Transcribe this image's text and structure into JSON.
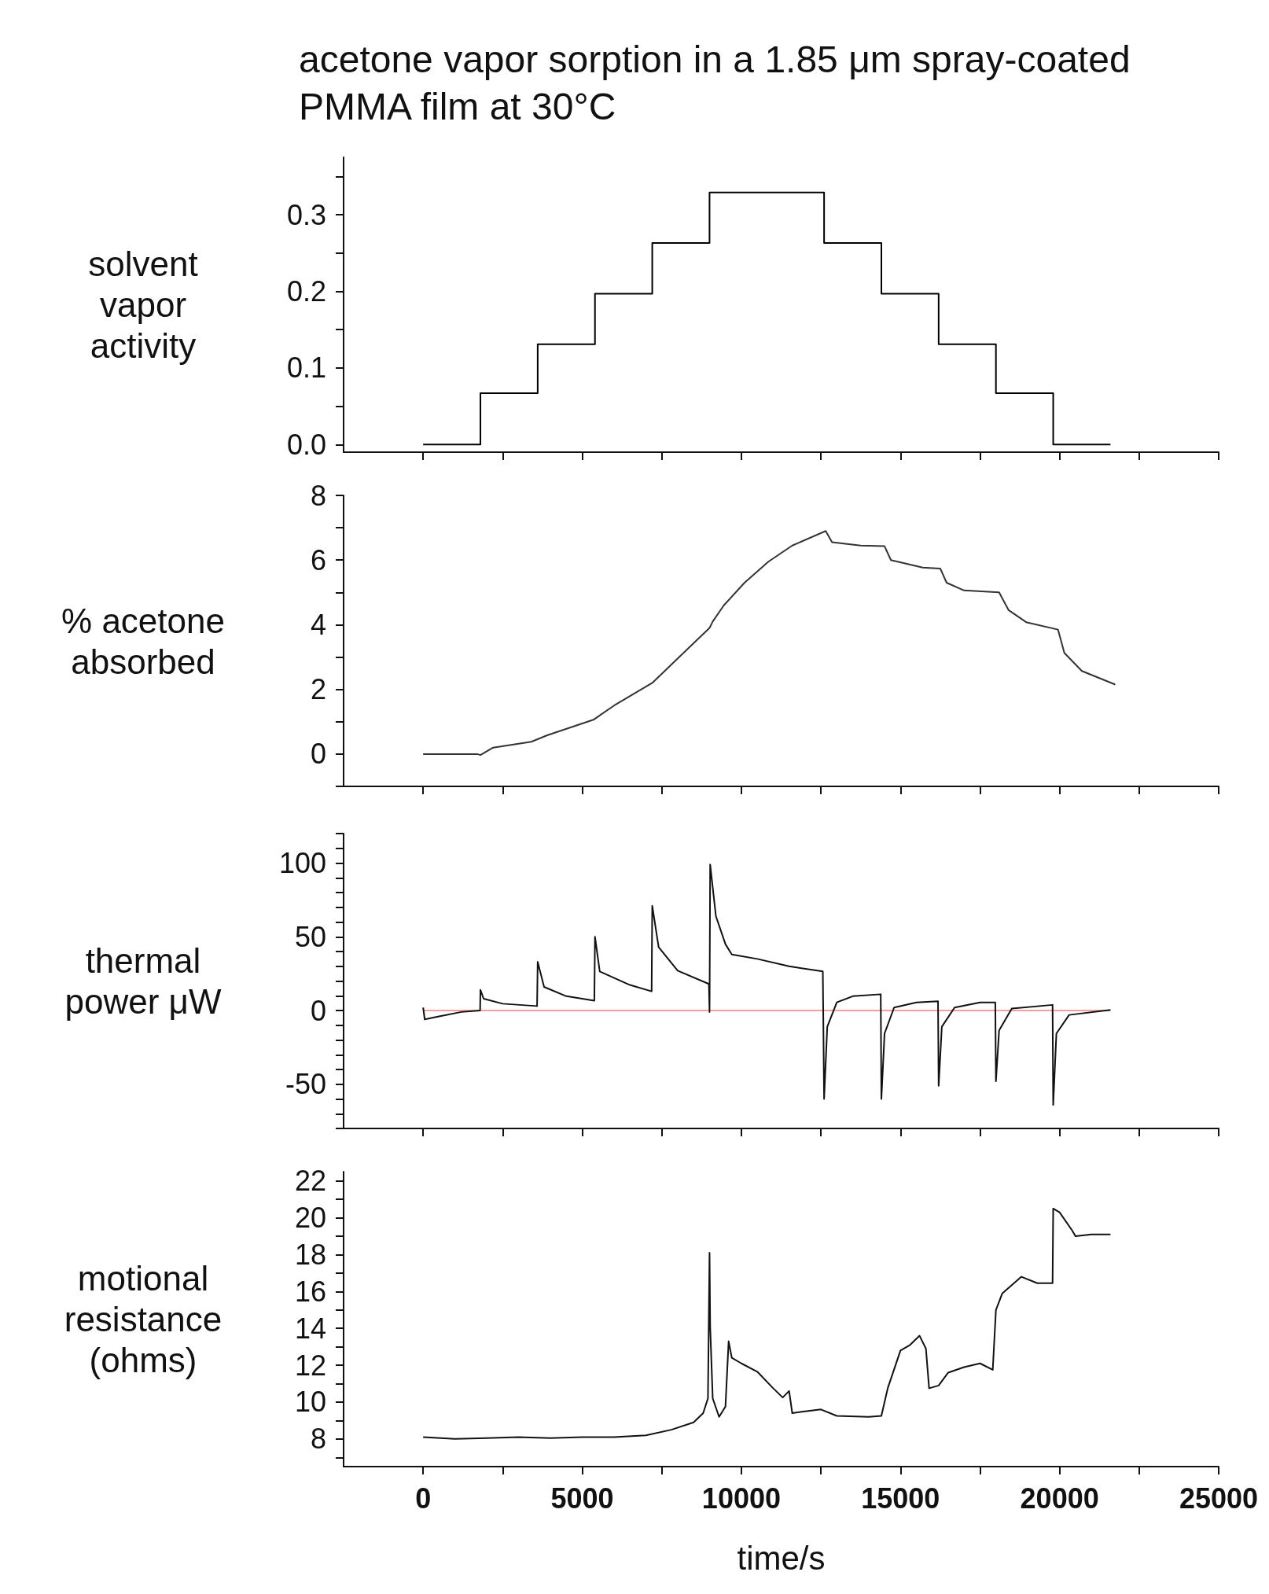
{
  "chart_data": [
    {
      "type": "step",
      "title": "acetone vapor sorption in a 1.85 μm spray-coated PMMA film at 30°C",
      "ylabel": "solvent vapor activity",
      "tick_labels": "y",
      "xlim": [
        -2500,
        25000
      ],
      "xticks": [
        {
          "value": 0,
          "label": null
        },
        {
          "value": 2500,
          "label": null
        },
        {
          "value": 5000,
          "label": null
        },
        {
          "value": 7500,
          "label": null
        },
        {
          "value": 10000,
          "label": null
        },
        {
          "value": 12500,
          "label": null
        },
        {
          "value": 15000,
          "label": null
        },
        {
          "value": 17500,
          "label": null
        },
        {
          "value": 20000,
          "label": null
        },
        {
          "value": 22500,
          "label": null
        },
        {
          "value": 25000,
          "label": null
        }
      ],
      "ylim": [
        -0.01,
        0.375
      ],
      "yticks": [
        {
          "value": 0,
          "label": "0.0"
        },
        {
          "value": 0.05,
          "label": null
        },
        0.1,
        {
          "value": 0.15,
          "label": null
        },
        0.2,
        {
          "value": 0.25,
          "label": null
        },
        0.3,
        {
          "value": 0.35,
          "label": null
        }
      ],
      "series": [
        {
          "color": "#000000",
          "x": [
            0,
            1800,
            3600,
            5400,
            7200,
            9000,
            12600,
            14400,
            16200,
            18000,
            19800,
            21600
          ],
          "values": [
            0,
            0.067,
            0.131,
            0.197,
            0.263,
            0.329,
            0.263,
            0.197,
            0.131,
            0.067,
            0,
            0
          ]
        }
      ]
    },
    {
      "type": "line",
      "ylabel": "% acetone absorbed",
      "tick_labels": "y",
      "xlim": [
        -2500,
        25000
      ],
      "xticks": [
        {
          "value": 0,
          "label": null
        },
        {
          "value": 2500,
          "label": null
        },
        {
          "value": 5000,
          "label": null
        },
        {
          "value": 7500,
          "label": null
        },
        {
          "value": 10000,
          "label": null
        },
        {
          "value": 12500,
          "label": null
        },
        {
          "value": 15000,
          "label": null
        },
        {
          "value": 17500,
          "label": null
        },
        {
          "value": 20000,
          "label": null
        },
        {
          "value": 22500,
          "label": null
        },
        {
          "value": 25000,
          "label": null
        }
      ],
      "ylim": [
        -1,
        8
      ],
      "yticks": [
        {
          "value": -1,
          "label": null
        },
        0,
        {
          "value": 1,
          "label": null
        },
        2,
        {
          "value": 3,
          "label": null
        },
        4,
        {
          "value": 5,
          "label": null
        },
        6,
        {
          "value": 7,
          "label": null
        },
        8
      ],
      "series": [
        {
          "color": "#333333",
          "x": [
            0,
            1700,
            1800,
            2200,
            3400,
            3900,
            5350,
            6000,
            7200,
            8150,
            9000,
            9100,
            9450,
            10100,
            10850,
            11600,
            12650,
            12850,
            13750,
            14500,
            14700,
            15700,
            16250,
            16450,
            17000,
            18100,
            18400,
            18950,
            19950,
            20150,
            20700,
            21750
          ],
          "values": [
            0,
            0,
            -0.03,
            0.2,
            0.38,
            0.58,
            1.06,
            1.5,
            2.2,
            3.1,
            3.9,
            4.1,
            4.6,
            5.3,
            5.95,
            6.45,
            6.9,
            6.55,
            6.45,
            6.43,
            6.0,
            5.77,
            5.74,
            5.3,
            5.06,
            5.0,
            4.45,
            4.08,
            3.85,
            3.13,
            2.57,
            2.15
          ]
        }
      ]
    },
    {
      "type": "line",
      "ylabel": "thermal power μW",
      "tick_labels": "y",
      "xlim": [
        -2500,
        25000
      ],
      "xticks": [
        {
          "value": 0,
          "label": null
        },
        {
          "value": 2500,
          "label": null
        },
        {
          "value": 5000,
          "label": null
        },
        {
          "value": 7500,
          "label": null
        },
        {
          "value": 10000,
          "label": null
        },
        {
          "value": 12500,
          "label": null
        },
        {
          "value": 15000,
          "label": null
        },
        {
          "value": 17500,
          "label": null
        },
        {
          "value": 20000,
          "label": null
        },
        {
          "value": 22500,
          "label": null
        },
        {
          "value": 25000,
          "label": null
        }
      ],
      "ylim": [
        -80,
        120
      ],
      "yticks": [
        {
          "value": -80,
          "label": null
        },
        {
          "value": -70,
          "label": null
        },
        {
          "value": -60,
          "label": null
        },
        -50,
        {
          "value": -40,
          "label": null
        },
        {
          "value": -30,
          "label": null
        },
        {
          "value": -20,
          "label": null
        },
        {
          "value": -10,
          "label": null
        },
        0,
        {
          "value": 10,
          "label": null
        },
        {
          "value": 20,
          "label": null
        },
        {
          "value": 30,
          "label": null
        },
        {
          "value": 40,
          "label": null
        },
        50,
        {
          "value": 60,
          "label": null
        },
        {
          "value": 70,
          "label": null
        },
        {
          "value": 80,
          "label": null
        },
        {
          "value": 90,
          "label": null
        },
        100,
        {
          "value": 110,
          "label": null
        },
        {
          "value": 120,
          "label": null
        }
      ],
      "series": [
        {
          "color": "#f4a0a0",
          "x": [
            0,
            21600
          ],
          "values": [
            0,
            0
          ]
        },
        {
          "color": "#111111",
          "x": [
            0,
            50,
            500,
            1200,
            1790,
            1800,
            1900,
            2500,
            3580,
            3600,
            3800,
            4500,
            5380,
            5400,
            5550,
            6500,
            7180,
            7200,
            7400,
            8000,
            8980,
            9000,
            9020,
            9200,
            9500,
            9700,
            10500,
            11500,
            12560,
            12600,
            12700,
            13000,
            13500,
            14380,
            14400,
            14500,
            14800,
            15500,
            16180,
            16200,
            16300,
            16700,
            17500,
            17980,
            18000,
            18100,
            18500,
            19780,
            19800,
            19900,
            20300,
            21600
          ],
          "values": [
            2,
            -6,
            -4,
            -1,
            0,
            14,
            8,
            4.6,
            3,
            33,
            16,
            9.7,
            6.7,
            50,
            26.5,
            17.3,
            13,
            71,
            43,
            27,
            18,
            -1,
            99,
            64,
            45,
            38,
            35,
            30,
            26.5,
            -60,
            -11,
            5.5,
            9.7,
            11,
            -60,
            -15.6,
            2,
            5.5,
            6.3,
            -51,
            -11,
            2,
            5.5,
            5.5,
            -48,
            -13.5,
            1.3,
            3.8,
            -64,
            -15.6,
            -3,
            0.4
          ]
        }
      ]
    },
    {
      "type": "line",
      "ylabel": "motional resistance (ohms)",
      "xlabel": "time/s",
      "xlim": [
        -2500,
        25000
      ],
      "xticks": [
        {
          "value": 0,
          "label": "0"
        },
        {
          "value": 2500,
          "label": null
        },
        5000,
        {
          "value": 7500,
          "label": null
        },
        10000,
        {
          "value": 12500,
          "label": null
        },
        15000,
        {
          "value": 17500,
          "label": null
        },
        20000,
        {
          "value": 22500,
          "label": null
        },
        25000
      ],
      "ylim": [
        6.5,
        22.5
      ],
      "yticks": [
        {
          "value": 7,
          "label": null
        },
        8,
        {
          "value": 9,
          "label": null
        },
        10,
        {
          "value": 11,
          "label": null
        },
        12,
        {
          "value": 13,
          "label": null
        },
        14,
        {
          "value": 15,
          "label": null
        },
        16,
        {
          "value": 17,
          "label": null
        },
        18,
        {
          "value": 19,
          "label": null
        },
        20,
        {
          "value": 21,
          "label": null
        },
        22
      ],
      "series": [
        {
          "color": "#111111",
          "x": [
            0,
            1000,
            2000,
            3000,
            4000,
            5000,
            6000,
            7000,
            7800,
            8500,
            8800,
            8950,
            9000,
            9020,
            9100,
            9300,
            9500,
            9600,
            9700,
            10000,
            10500,
            11000,
            11300,
            11500,
            11600,
            12000,
            12500,
            13000,
            14000,
            14400,
            14600,
            15000,
            15300,
            15600,
            15800,
            15900,
            16200,
            16500,
            17000,
            17500,
            17900,
            18000,
            18200,
            18800,
            19300,
            19780,
            19800,
            20000,
            20400,
            20500,
            21000,
            21600
          ],
          "values": [
            8.1,
            8.0,
            8.05,
            8.1,
            8.05,
            8.1,
            8.1,
            8.2,
            8.5,
            8.9,
            9.4,
            10.2,
            18.1,
            14.1,
            10.2,
            9.2,
            9.75,
            13.3,
            12.4,
            12.1,
            11.65,
            10.75,
            10.25,
            10.6,
            9.4,
            9.5,
            9.6,
            9.25,
            9.2,
            9.25,
            10.75,
            12.8,
            13.1,
            13.6,
            12.9,
            10.75,
            10.9,
            11.6,
            11.9,
            12.1,
            11.75,
            15,
            15.9,
            16.8,
            16.45,
            16.45,
            20.5,
            20.3,
            19.3,
            19,
            19.1,
            19.1
          ]
        }
      ]
    }
  ]
}
